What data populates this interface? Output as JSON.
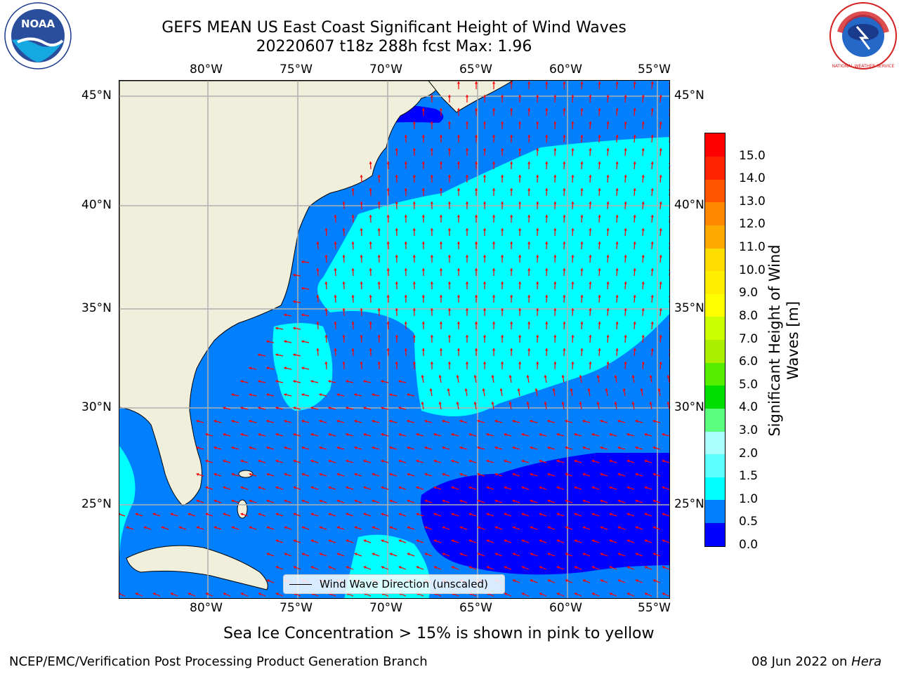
{
  "title": {
    "line1": "GEFS MEAN US East Coast Significant Height of Wind Waves",
    "line2": "20220607 t18z 288h fcst   Max: 1.96"
  },
  "map": {
    "lon_range": [
      -85,
      -54.3
    ],
    "lat_range": [
      20.4,
      46.0
    ],
    "lon_ticks": [
      "80°W",
      "75°W",
      "70°W",
      "65°W",
      "60°W",
      "55°W"
    ],
    "lat_ticks": [
      "45°N",
      "40°N",
      "35°N",
      "30°N",
      "25°N"
    ],
    "land_color": "#efefdc",
    "ocean_band_colors": {
      "0.0-0.5": "#0000ff",
      "0.5-1.0": "#0080ff",
      "1.0-1.5": "#00ffff",
      "1.5-2.0": "#5affff"
    },
    "arrow_color": "#ff0000",
    "grid": true
  },
  "legend": {
    "label": "Wind Wave Direction (unscaled)"
  },
  "colorbar": {
    "title": "Significant Height of Wind Waves [m]",
    "tick_labels": [
      "15.0",
      "14.0",
      "13.0",
      "12.0",
      "11.0",
      "10.0",
      "9.0",
      "8.0",
      "7.0",
      "6.0",
      "5.0",
      "4.0",
      "3.0",
      "2.0",
      "1.5",
      "1.0",
      "0.5",
      "0.0"
    ],
    "segment_colors": [
      "#0000ff",
      "#0080ff",
      "#00ffff",
      "#5affff",
      "#aaffff",
      "#5aff80",
      "#00dd00",
      "#55ee00",
      "#aaee00",
      "#ccff00",
      "#ffff00",
      "#ffee00",
      "#ffdd00",
      "#ffaa00",
      "#ff8800",
      "#ff5500",
      "#ff2200",
      "#ff0000"
    ]
  },
  "sea_ice_note": "Sea Ice Concentration > 15% is shown in pink to yellow",
  "footer": {
    "left": "NCEP/EMC/Verification Post Processing Product Generation Branch",
    "right_date": "08 Jun 2022 on ",
    "right_host": "Hera"
  },
  "logos": {
    "noaa_text": "NOAA",
    "nws_text": "NATIONAL WEATHER SERVICE"
  }
}
